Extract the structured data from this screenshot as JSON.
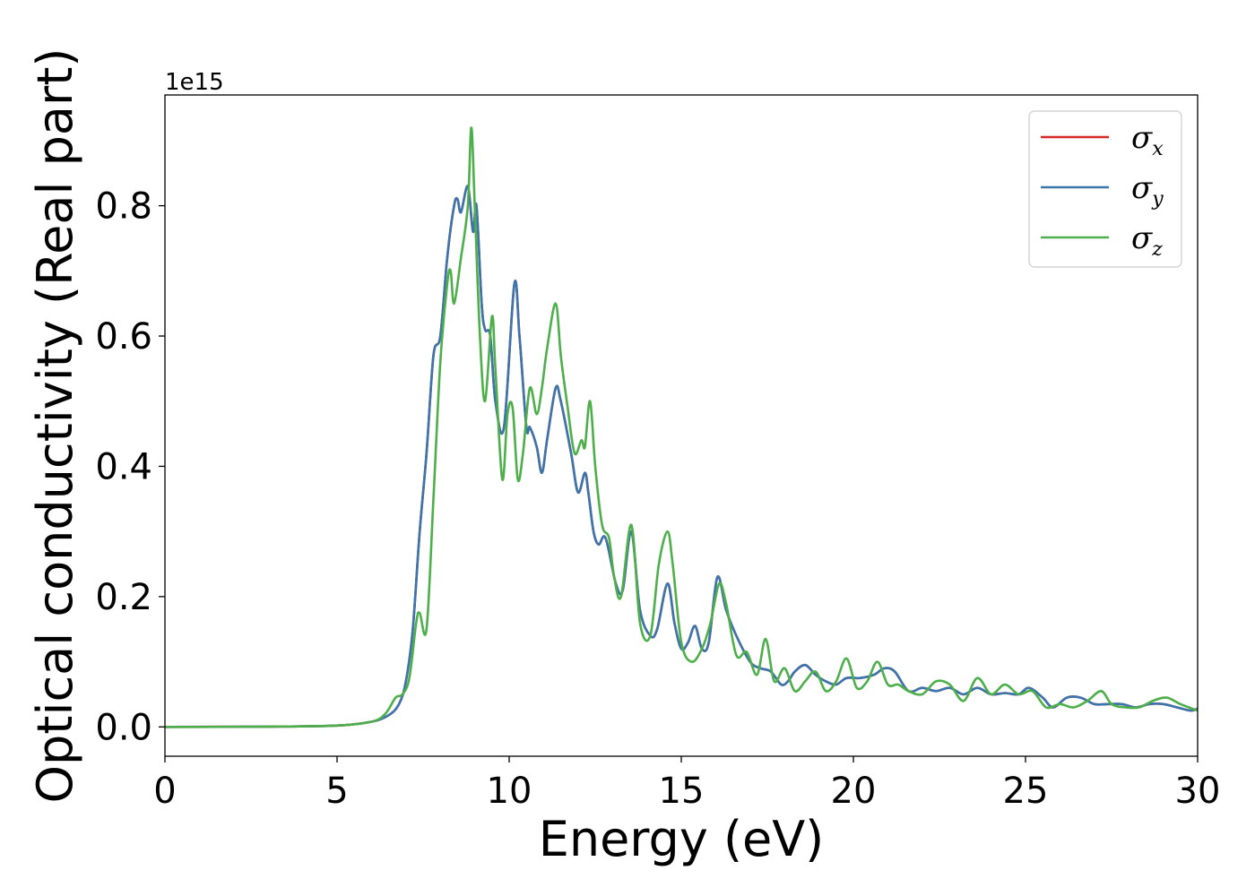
{
  "chart_data": {
    "type": "line",
    "xlabel": "Energy (eV)",
    "ylabel": "Optical conductivity (Real part)",
    "y_offset_label": "1e15",
    "xlim": [
      0,
      30
    ],
    "ylim": [
      -0.045,
      0.97
    ],
    "x_ticks": [
      0,
      5,
      10,
      15,
      20,
      25,
      30
    ],
    "y_ticks": [
      0.0,
      0.2,
      0.4,
      0.6,
      0.8
    ],
    "y_tick_labels": [
      "0.0",
      "0.2",
      "0.4",
      "0.6",
      "0.8"
    ],
    "grid": false,
    "legend_position": "top-right",
    "series": [
      {
        "name": "σx",
        "symbol": "σ",
        "subscript": "x",
        "color": "#d62728",
        "x": [
          0,
          3,
          5,
          6,
          6.5,
          6.8,
          7,
          7.2,
          7.4,
          7.6,
          7.8,
          8,
          8.2,
          8.4,
          8.5,
          8.6,
          8.8,
          8.95,
          9.05,
          9.2,
          9.3,
          9.45,
          9.6,
          9.85,
          10.15,
          10.3,
          10.5,
          10.6,
          10.8,
          10.95,
          11.1,
          11.35,
          11.5,
          11.8,
          12,
          12.2,
          12.3,
          12.45,
          12.6,
          12.8,
          13.1,
          13.3,
          13.55,
          13.8,
          14.1,
          14.3,
          14.6,
          14.8,
          15,
          15.2,
          15.4,
          15.6,
          15.8,
          16.05,
          16.3,
          16.6,
          17,
          17.3,
          17.6,
          17.9,
          18.1,
          18.3,
          18.6,
          18.9,
          19.2,
          19.5,
          19.8,
          20.2,
          20.6,
          20.9,
          21.2,
          21.6,
          22,
          22.4,
          22.8,
          23.2,
          23.6,
          24,
          24.4,
          24.8,
          25.1,
          25.5,
          25.8,
          26.2,
          26.6,
          27,
          27.4,
          27.8,
          28.2,
          28.6,
          29,
          29.4,
          29.8,
          30
        ],
        "y": [
          0,
          0.0005,
          0.002,
          0.008,
          0.018,
          0.035,
          0.07,
          0.15,
          0.3,
          0.42,
          0.57,
          0.6,
          0.72,
          0.8,
          0.81,
          0.79,
          0.83,
          0.76,
          0.8,
          0.65,
          0.61,
          0.6,
          0.5,
          0.46,
          0.68,
          0.6,
          0.46,
          0.46,
          0.43,
          0.39,
          0.44,
          0.52,
          0.5,
          0.42,
          0.36,
          0.39,
          0.36,
          0.3,
          0.28,
          0.29,
          0.22,
          0.21,
          0.3,
          0.18,
          0.14,
          0.15,
          0.22,
          0.16,
          0.12,
          0.13,
          0.155,
          0.12,
          0.13,
          0.23,
          0.18,
          0.14,
          0.1,
          0.09,
          0.085,
          0.065,
          0.07,
          0.085,
          0.095,
          0.08,
          0.07,
          0.065,
          0.075,
          0.075,
          0.08,
          0.09,
          0.085,
          0.055,
          0.06,
          0.055,
          0.06,
          0.05,
          0.06,
          0.05,
          0.052,
          0.05,
          0.06,
          0.045,
          0.03,
          0.045,
          0.045,
          0.035,
          0.035,
          0.035,
          0.03,
          0.035,
          0.035,
          0.03,
          0.025,
          0.028
        ]
      },
      {
        "name": "σy",
        "symbol": "σ",
        "subscript": "y",
        "color": "#3a75ad",
        "x": [
          0,
          3,
          5,
          6,
          6.5,
          6.8,
          7,
          7.2,
          7.4,
          7.6,
          7.8,
          8,
          8.2,
          8.4,
          8.5,
          8.6,
          8.8,
          8.95,
          9.05,
          9.2,
          9.3,
          9.45,
          9.6,
          9.85,
          10.15,
          10.3,
          10.5,
          10.6,
          10.8,
          10.95,
          11.1,
          11.35,
          11.5,
          11.8,
          12,
          12.2,
          12.3,
          12.45,
          12.6,
          12.8,
          13.1,
          13.3,
          13.55,
          13.8,
          14.1,
          14.3,
          14.6,
          14.8,
          15,
          15.2,
          15.4,
          15.6,
          15.8,
          16.05,
          16.3,
          16.6,
          17,
          17.3,
          17.6,
          17.9,
          18.1,
          18.3,
          18.6,
          18.9,
          19.2,
          19.5,
          19.8,
          20.2,
          20.6,
          20.9,
          21.2,
          21.6,
          22,
          22.4,
          22.8,
          23.2,
          23.6,
          24,
          24.4,
          24.8,
          25.1,
          25.5,
          25.8,
          26.2,
          26.6,
          27,
          27.4,
          27.8,
          28.2,
          28.6,
          29,
          29.4,
          29.8,
          30
        ],
        "y": [
          0,
          0.0005,
          0.002,
          0.008,
          0.018,
          0.035,
          0.07,
          0.15,
          0.3,
          0.42,
          0.57,
          0.6,
          0.72,
          0.8,
          0.81,
          0.79,
          0.83,
          0.76,
          0.8,
          0.65,
          0.61,
          0.6,
          0.5,
          0.46,
          0.68,
          0.6,
          0.46,
          0.46,
          0.43,
          0.39,
          0.44,
          0.52,
          0.5,
          0.42,
          0.36,
          0.39,
          0.36,
          0.3,
          0.28,
          0.29,
          0.22,
          0.21,
          0.3,
          0.18,
          0.14,
          0.15,
          0.22,
          0.16,
          0.12,
          0.13,
          0.155,
          0.12,
          0.13,
          0.23,
          0.18,
          0.14,
          0.1,
          0.09,
          0.085,
          0.065,
          0.07,
          0.085,
          0.095,
          0.08,
          0.07,
          0.065,
          0.075,
          0.075,
          0.08,
          0.09,
          0.085,
          0.055,
          0.06,
          0.055,
          0.06,
          0.05,
          0.06,
          0.05,
          0.052,
          0.05,
          0.06,
          0.045,
          0.03,
          0.045,
          0.045,
          0.035,
          0.035,
          0.035,
          0.03,
          0.035,
          0.035,
          0.03,
          0.025,
          0.028
        ]
      },
      {
        "name": "σz",
        "symbol": "σ",
        "subscript": "z",
        "color": "#4daf4a",
        "x": [
          0,
          3,
          5,
          6,
          6.4,
          6.7,
          6.9,
          7.1,
          7.3,
          7.4,
          7.6,
          7.8,
          8,
          8.2,
          8.3,
          8.4,
          8.6,
          8.8,
          8.9,
          9,
          9.15,
          9.3,
          9.5,
          9.6,
          9.8,
          9.95,
          10.1,
          10.25,
          10.4,
          10.6,
          10.8,
          10.95,
          11.1,
          11.35,
          11.5,
          11.7,
          11.9,
          12.1,
          12.2,
          12.35,
          12.5,
          12.7,
          12.9,
          13.05,
          13.25,
          13.55,
          13.8,
          14.1,
          14.35,
          14.6,
          14.75,
          15,
          15.3,
          15.6,
          15.85,
          16.1,
          16.3,
          16.6,
          16.9,
          17.2,
          17.45,
          17.7,
          18,
          18.3,
          18.6,
          18.9,
          19.2,
          19.5,
          19.8,
          20.1,
          20.4,
          20.7,
          21,
          21.3,
          21.6,
          22,
          22.4,
          22.8,
          23.2,
          23.6,
          24,
          24.4,
          24.8,
          25.2,
          25.6,
          26,
          26.4,
          26.8,
          27.2,
          27.5,
          27.9,
          28.3,
          28.7,
          29.1,
          29.5,
          30
        ],
        "y": [
          0,
          0.0005,
          0.002,
          0.008,
          0.02,
          0.045,
          0.05,
          0.075,
          0.16,
          0.175,
          0.15,
          0.35,
          0.56,
          0.68,
          0.7,
          0.65,
          0.72,
          0.8,
          0.92,
          0.8,
          0.6,
          0.5,
          0.63,
          0.55,
          0.38,
          0.48,
          0.49,
          0.38,
          0.42,
          0.52,
          0.48,
          0.52,
          0.58,
          0.65,
          0.57,
          0.49,
          0.42,
          0.44,
          0.43,
          0.5,
          0.4,
          0.31,
          0.29,
          0.23,
          0.2,
          0.31,
          0.16,
          0.14,
          0.25,
          0.3,
          0.25,
          0.13,
          0.1,
          0.12,
          0.16,
          0.22,
          0.19,
          0.11,
          0.115,
          0.08,
          0.135,
          0.07,
          0.09,
          0.055,
          0.07,
          0.085,
          0.055,
          0.07,
          0.105,
          0.06,
          0.07,
          0.1,
          0.065,
          0.065,
          0.055,
          0.05,
          0.07,
          0.065,
          0.04,
          0.075,
          0.05,
          0.065,
          0.05,
          0.055,
          0.03,
          0.035,
          0.03,
          0.04,
          0.055,
          0.035,
          0.03,
          0.03,
          0.04,
          0.045,
          0.035,
          0.025
        ]
      }
    ]
  }
}
